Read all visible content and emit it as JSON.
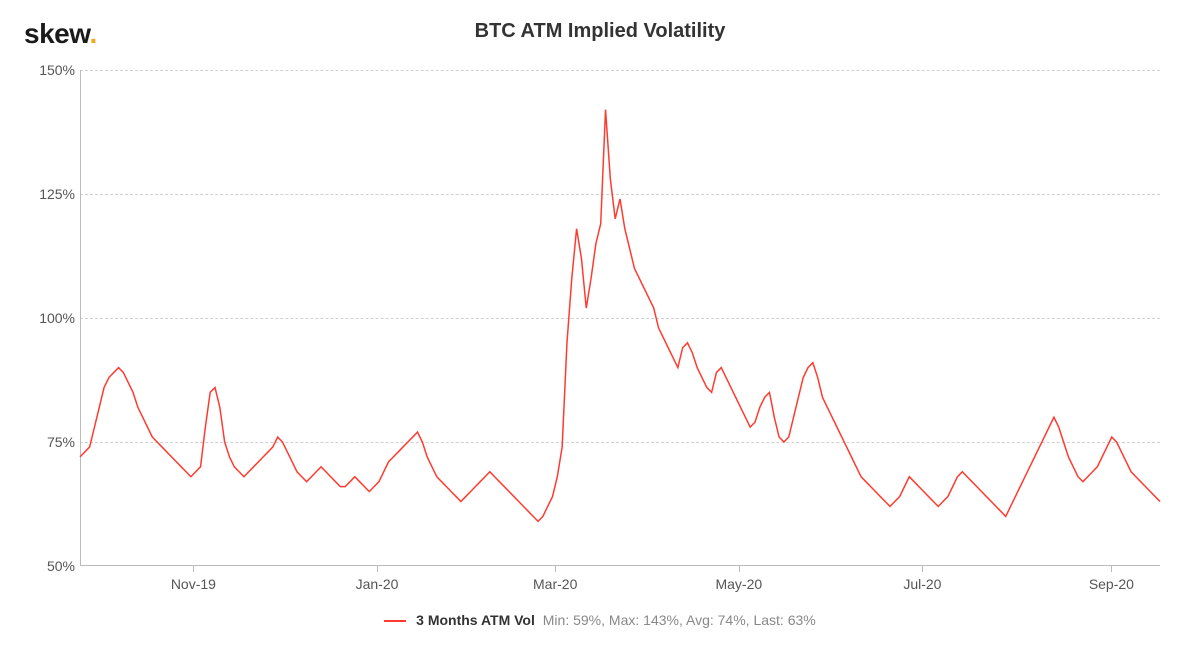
{
  "logo": {
    "text": "skew",
    "dot": ".",
    "text_color": "#1a1a1a",
    "dot_color": "#f5a623"
  },
  "title": "BTC ATM Implied Volatility",
  "chart": {
    "type": "line",
    "background_color": "#ffffff",
    "grid_color": "#d0d0d0",
    "axis_color": "#bbbbbb",
    "ylim": [
      50,
      150
    ],
    "yticks": [
      50,
      75,
      100,
      125,
      150
    ],
    "ytick_labels": [
      "50%",
      "75%",
      "100%",
      "125%",
      "150%"
    ],
    "xticks_labels": [
      "Nov-19",
      "Jan-20",
      "Mar-20",
      "May-20",
      "Jul-20",
      "Sep-20"
    ],
    "xticks_positions": [
      0.105,
      0.275,
      0.44,
      0.61,
      0.78,
      0.955
    ],
    "series": {
      "name": "3 Months ATM Vol",
      "color": "#ff3b30",
      "line_width": 1.5,
      "stats": {
        "min": "59%",
        "max": "143%",
        "avg": "74%",
        "last": "63%"
      },
      "values": [
        72,
        73,
        74,
        78,
        82,
        86,
        88,
        89,
        90,
        89,
        87,
        85,
        82,
        80,
        78,
        76,
        75,
        74,
        73,
        72,
        71,
        70,
        69,
        68,
        69,
        70,
        78,
        85,
        86,
        82,
        75,
        72,
        70,
        69,
        68,
        69,
        70,
        71,
        72,
        73,
        74,
        76,
        75,
        73,
        71,
        69,
        68,
        67,
        68,
        69,
        70,
        69,
        68,
        67,
        66,
        66,
        67,
        68,
        67,
        66,
        65,
        66,
        67,
        69,
        71,
        72,
        73,
        74,
        75,
        76,
        77,
        75,
        72,
        70,
        68,
        67,
        66,
        65,
        64,
        63,
        64,
        65,
        66,
        67,
        68,
        69,
        68,
        67,
        66,
        65,
        64,
        63,
        62,
        61,
        60,
        59,
        60,
        62,
        64,
        68,
        74,
        95,
        108,
        118,
        112,
        102,
        108,
        115,
        119,
        142,
        128,
        120,
        124,
        118,
        114,
        110,
        108,
        106,
        104,
        102,
        98,
        96,
        94,
        92,
        90,
        94,
        95,
        93,
        90,
        88,
        86,
        85,
        89,
        90,
        88,
        86,
        84,
        82,
        80,
        78,
        79,
        82,
        84,
        85,
        80,
        76,
        75,
        76,
        80,
        84,
        88,
        90,
        91,
        88,
        84,
        82,
        80,
        78,
        76,
        74,
        72,
        70,
        68,
        67,
        66,
        65,
        64,
        63,
        62,
        63,
        64,
        66,
        68,
        67,
        66,
        65,
        64,
        63,
        62,
        63,
        64,
        66,
        68,
        69,
        68,
        67,
        66,
        65,
        64,
        63,
        62,
        61,
        60,
        62,
        64,
        66,
        68,
        70,
        72,
        74,
        76,
        78,
        80,
        78,
        75,
        72,
        70,
        68,
        67,
        68,
        69,
        70,
        72,
        74,
        76,
        75,
        73,
        71,
        69,
        68,
        67,
        66,
        65,
        64,
        63
      ]
    }
  },
  "legend": {
    "prefix_min": "Min: ",
    "prefix_max": "Max: ",
    "prefix_avg": "Avg: ",
    "prefix_last": "Last: "
  },
  "layout": {
    "title_fontsize": 20,
    "label_fontsize": 14,
    "logo_fontsize": 28
  }
}
